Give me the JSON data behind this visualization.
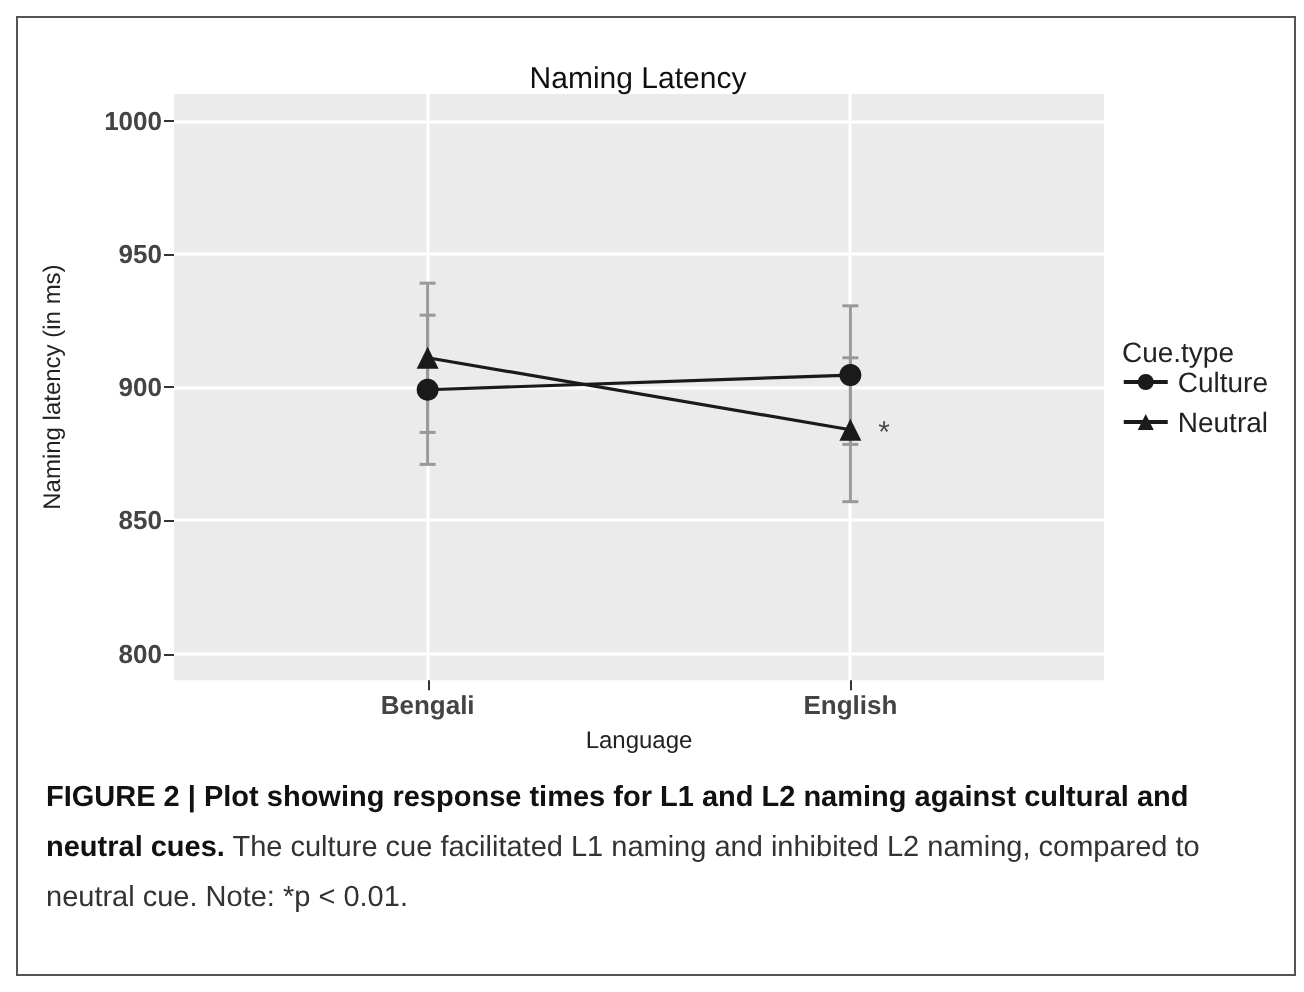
{
  "chart_data": {
    "type": "line",
    "title": "Naming Latency",
    "xlabel": "Language",
    "ylabel": "Naming latency (in ms)",
    "legend_title": "Cue.type",
    "categories": [
      "Bengali",
      "English"
    ],
    "series": [
      {
        "name": "Culture",
        "color": "#1a1a1a",
        "marker": "circle",
        "values": [
          899,
          904.5
        ],
        "errors": [
          28,
          26
        ]
      },
      {
        "name": "Neutral",
        "color": "#1a1a1a",
        "marker": "triangle",
        "values": [
          911,
          884
        ],
        "errors": [
          28,
          27
        ]
      }
    ],
    "ylim": [
      790,
      1010
    ],
    "yticks": [
      800,
      850,
      900,
      950,
      1000
    ],
    "grid": true,
    "legend": "right",
    "annotations": [
      {
        "text": "*",
        "x": "English",
        "y": 884
      },
      "FIGURE 2 | Plot showing response times for L1 and L2 naming against cultural and neutral cues.",
      "The culture cue facilitated L1 naming and inhibited L2 naming, compared to neutral cue. Note: *p < 0.01."
    ]
  }
}
